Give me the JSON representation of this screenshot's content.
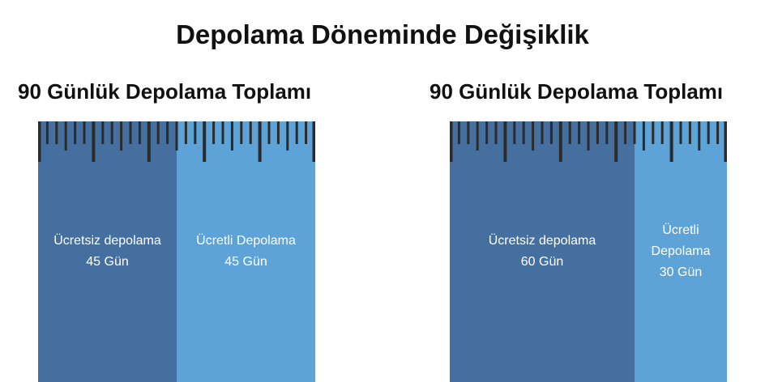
{
  "title": "Depolama Döneminde Değişiklik",
  "panels": [
    {
      "heading": "90 Günlük Depolama Toplamı",
      "segments": [
        {
          "label": "Ücretsiz depolama",
          "days": 45,
          "days_label": "45 Gün"
        },
        {
          "label": "Ücretli Depolama",
          "days": 45,
          "days_label": "45 Gün"
        }
      ]
    },
    {
      "heading": "90 Günlük Depolama Toplamı",
      "segments": [
        {
          "label": "Ücretsiz depolama",
          "days": 60,
          "days_label": "60 Gün"
        },
        {
          "label": "Ücretli Depolama",
          "days": 30,
          "days_label": "30 Gün"
        }
      ]
    }
  ]
}
